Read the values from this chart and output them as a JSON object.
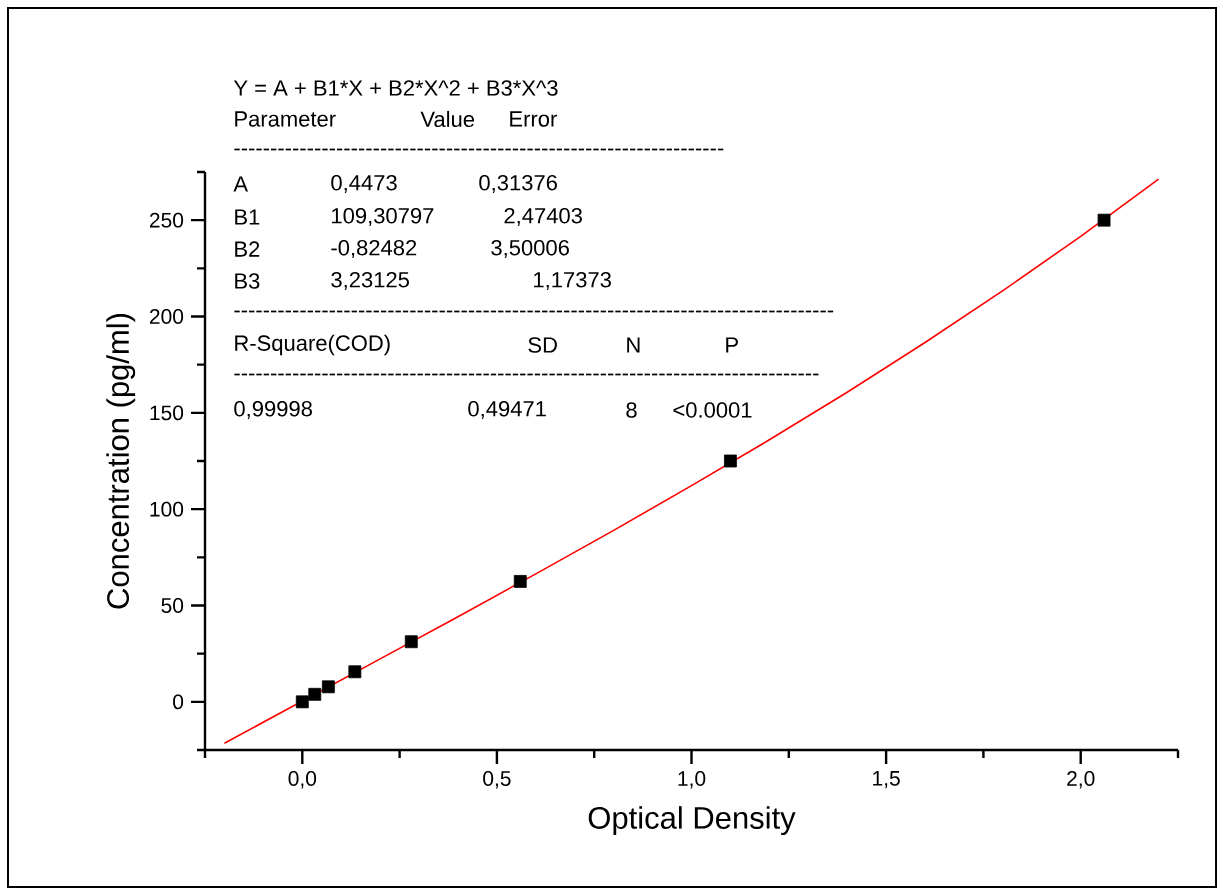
{
  "chart_data": {
    "type": "scatter",
    "xlabel": "Optical Density",
    "ylabel": "Concentration (pg/ml)",
    "xlim": [
      -0.25,
      2.25
    ],
    "ylim": [
      -25,
      275
    ],
    "xticks": [
      {
        "value": -0.25,
        "label": null
      },
      {
        "value": 0,
        "label": "0,0"
      },
      {
        "value": 0.25,
        "label": null
      },
      {
        "value": 0.5,
        "label": "0,5"
      },
      {
        "value": 0.75,
        "label": null
      },
      {
        "value": 1.0,
        "label": "1,0"
      },
      {
        "value": 1.25,
        "label": null
      },
      {
        "value": 1.5,
        "label": "1,5"
      },
      {
        "value": 1.75,
        "label": null
      },
      {
        "value": 2.0,
        "label": "2,0"
      },
      {
        "value": 2.25,
        "label": null
      }
    ],
    "yticks": [
      {
        "value": -25,
        "label": null
      },
      0,
      {
        "value": 25,
        "label": null
      },
      50,
      {
        "value": 75,
        "label": null
      },
      100,
      {
        "value": 125,
        "label": null
      },
      150,
      {
        "value": 175,
        "label": null
      },
      200,
      {
        "value": 225,
        "label": null
      },
      250,
      {
        "value": 275,
        "label": null
      }
    ],
    "series": [
      {
        "color": "#000000",
        "marker": "square",
        "x": [
          0.0,
          0.032,
          0.067,
          0.135,
          0.28,
          0.56,
          1.1,
          2.06
        ],
        "values": [
          0,
          3.9,
          7.8,
          15.6,
          31.2,
          62.5,
          125,
          250
        ]
      },
      {
        "type": "line",
        "color": "#ff0000",
        "marker": "none",
        "line_style": "solid",
        "x": [
          -0.2,
          0.2,
          0.4,
          0.6,
          0.8,
          1.0,
          1.2,
          1.4,
          1.6,
          1.8,
          2.0,
          2.2
        ],
        "values": [
          -21.5,
          22.3,
          44.2,
          66.4,
          89.0,
          112.2,
          136.0,
          160.7,
          186.5,
          213.4,
          241.6,
          271.3
        ]
      }
    ],
    "annotations": [
      "Y = A + B1*X + B2*X^2 + B3*X^3",
      "Parameter",
      "Value",
      "Error",
      "-------------------------------------------------------------------",
      "A",
      "0,4473",
      "0,31376",
      "B1",
      "109,30797",
      "2,47403",
      "B2",
      "-0,82482",
      "3,50006",
      "B3",
      "3,23125",
      "1,17373",
      "----------------------------------------------------------------------------------",
      "R-Square(COD)",
      "SD",
      "N",
      "P",
      "--------------------------------------------------------------------------------",
      "0,99998",
      "0,49471",
      "8",
      "<0.0001"
    ]
  }
}
